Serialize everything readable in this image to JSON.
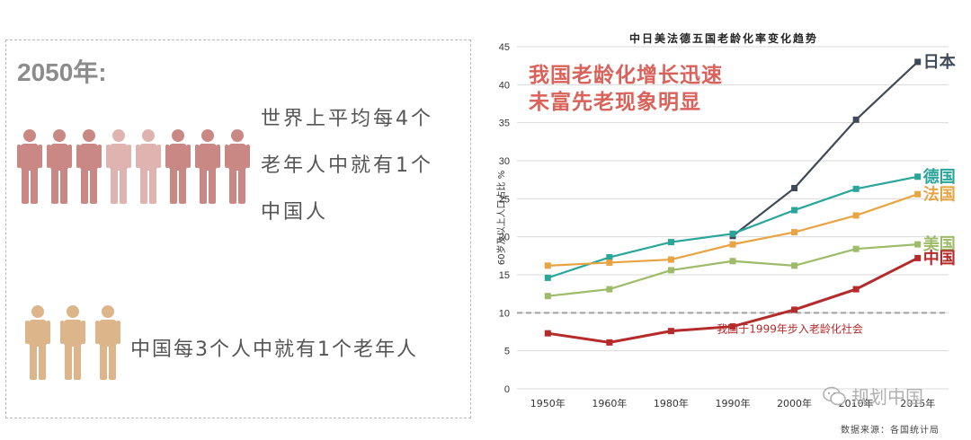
{
  "left_panel": {
    "year": "2050年:",
    "stat1_lines": [
      "世界上平均每4个",
      "老年人中就有1个",
      "中国人"
    ],
    "stat2": "中国每3个人中就有1个老年人",
    "colors": {
      "dark": "#c98884",
      "light": "#dfb3b0",
      "orange": "#dcb58a"
    }
  },
  "chart_header": {
    "title": "中日美法德五国老龄化率变化趋势",
    "headline_lines": [
      "我国老龄化增长迅速",
      "未富先老现象明显"
    ]
  },
  "watermark": "规划中国",
  "source": "数据来源：各国统计局",
  "chart_data": {
    "type": "line",
    "title": "中日美法德五国老龄化率变化趋势",
    "ylabel": "60岁及以上人口占比 %",
    "categories": [
      "1950年",
      "1960年",
      "1980年",
      "1990年",
      "2000年",
      "2010年",
      "2015年"
    ],
    "ylim": [
      0,
      45
    ],
    "yticks": [
      0,
      5,
      10,
      15,
      20,
      25,
      30,
      35,
      40,
      45
    ],
    "grid": true,
    "series": [
      {
        "name": "日本",
        "color": "#3f4a59",
        "values": [
          null,
          null,
          null,
          20.1,
          26.4,
          35.4,
          43.0
        ]
      },
      {
        "name": "德国",
        "color": "#2aa59a",
        "values": [
          14.6,
          17.3,
          19.3,
          20.4,
          23.5,
          26.3,
          27.9
        ]
      },
      {
        "name": "法国",
        "color": "#e8a342",
        "values": [
          16.2,
          16.6,
          17.0,
          19.0,
          20.6,
          22.8,
          25.6
        ]
      },
      {
        "name": "美国",
        "color": "#9dbb68",
        "values": [
          12.2,
          13.1,
          15.6,
          16.8,
          16.2,
          18.4,
          19.0
        ]
      },
      {
        "name": "中国",
        "color": "#b52a2a",
        "values": [
          7.3,
          6.1,
          7.6,
          8.2,
          10.4,
          13.1,
          17.2
        ]
      }
    ],
    "reference_line": {
      "value": 10,
      "label": "我国于1999年步入老龄化社会"
    }
  }
}
